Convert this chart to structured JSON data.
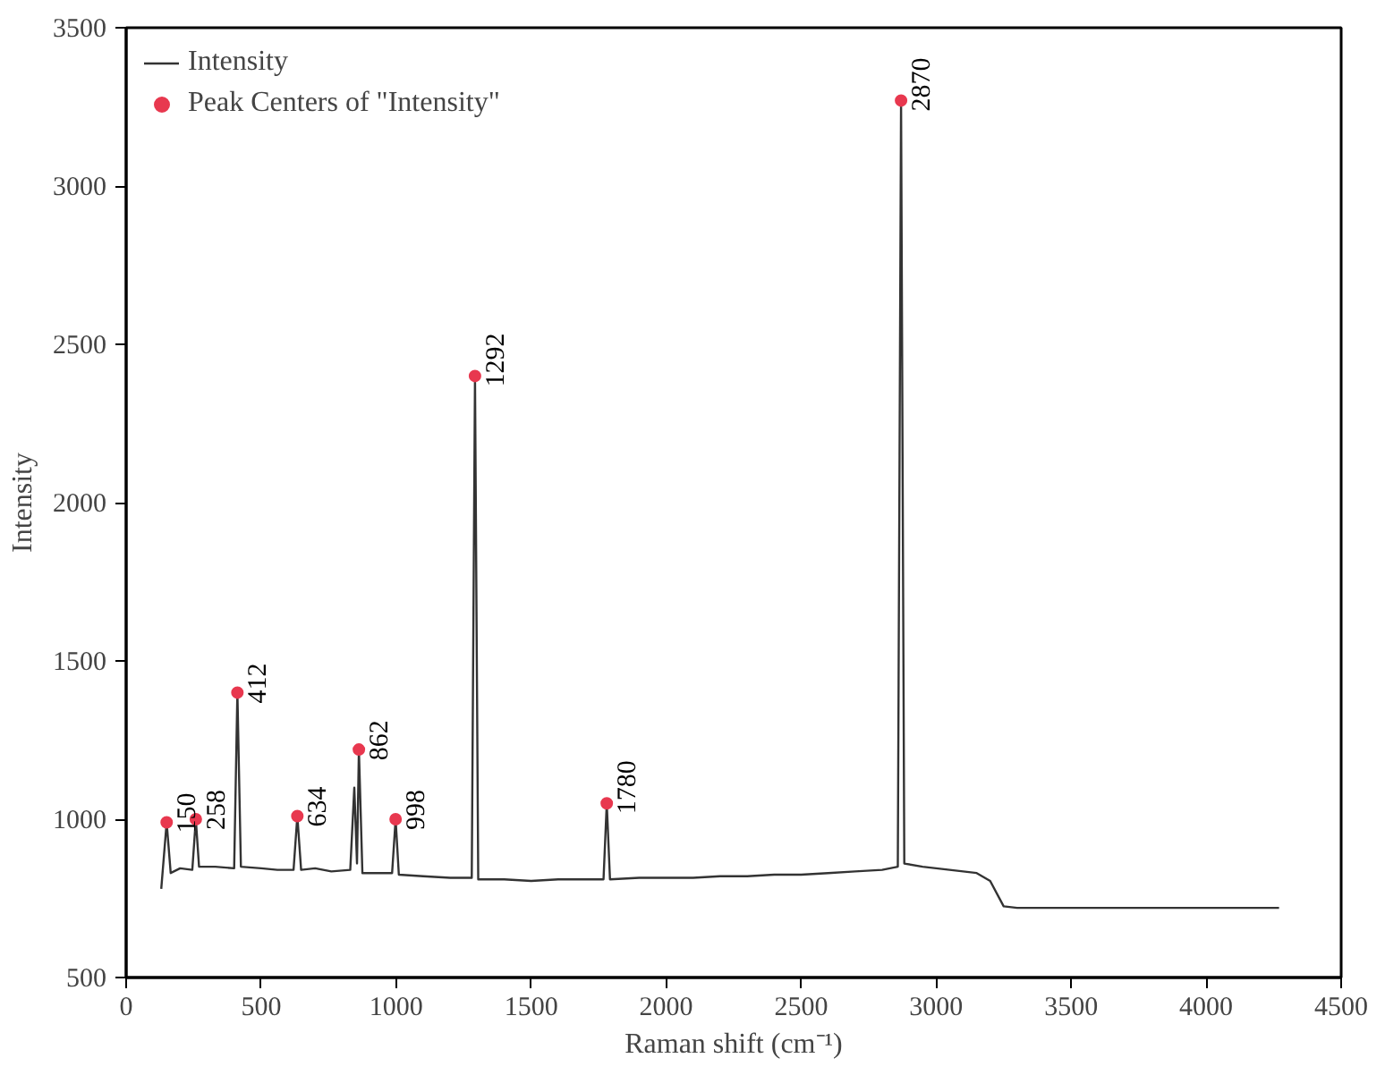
{
  "chart_data": {
    "type": "line",
    "xlabel": "Raman shift (cm⁻¹)",
    "ylabel": "Intensity",
    "xlim": [
      0,
      4500
    ],
    "ylim": [
      500,
      3500
    ],
    "xticks": [
      0,
      500,
      1000,
      1500,
      2000,
      2500,
      3000,
      3500,
      4000,
      4500
    ],
    "yticks": [
      500,
      1000,
      1500,
      2000,
      2500,
      3000,
      3500
    ],
    "grid": false,
    "legend": "top left",
    "series": [
      {
        "name": "Intensity",
        "color": "#333333",
        "x": [
          130,
          150,
          165,
          200,
          245,
          258,
          270,
          330,
          400,
          412,
          425,
          500,
          560,
          620,
          634,
          648,
          700,
          760,
          830,
          845,
          855,
          862,
          875,
          940,
          985,
          998,
          1010,
          1100,
          1200,
          1280,
          1292,
          1304,
          1400,
          1500,
          1600,
          1700,
          1768,
          1780,
          1792,
          1900,
          2000,
          2100,
          2200,
          2300,
          2400,
          2500,
          2600,
          2700,
          2800,
          2858,
          2870,
          2882,
          2950,
          3050,
          3150,
          3200,
          3250,
          3300,
          4270
        ],
        "values": [
          780,
          990,
          830,
          845,
          840,
          1000,
          850,
          850,
          845,
          1400,
          850,
          845,
          840,
          840,
          1010,
          840,
          845,
          835,
          840,
          1100,
          860,
          1220,
          830,
          830,
          830,
          1000,
          825,
          820,
          815,
          815,
          2400,
          810,
          810,
          805,
          810,
          810,
          810,
          1050,
          810,
          815,
          815,
          815,
          820,
          820,
          825,
          825,
          830,
          835,
          840,
          850,
          3270,
          860,
          850,
          840,
          830,
          805,
          725,
          720,
          720
        ]
      },
      {
        "name": "Peak Centers of \"Intensity\"",
        "type": "scatter",
        "color": "#e8384f",
        "x": [
          150,
          258,
          412,
          634,
          862,
          998,
          1292,
          1780,
          2870
        ],
        "values": [
          990,
          1000,
          1400,
          1010,
          1220,
          1000,
          2400,
          1050,
          3270
        ]
      }
    ],
    "annotations": [
      {
        "text": "150",
        "x": 150,
        "y": 990
      },
      {
        "text": "258",
        "x": 258,
        "y": 1000
      },
      {
        "text": "412",
        "x": 412,
        "y": 1400
      },
      {
        "text": "634",
        "x": 634,
        "y": 1010
      },
      {
        "text": "862",
        "x": 862,
        "y": 1220
      },
      {
        "text": "998",
        "x": 998,
        "y": 1000
      },
      {
        "text": "1292",
        "x": 1292,
        "y": 2400
      },
      {
        "text": "1780",
        "x": 1780,
        "y": 1050
      },
      {
        "text": "2870",
        "x": 2870,
        "y": 3270
      }
    ]
  }
}
